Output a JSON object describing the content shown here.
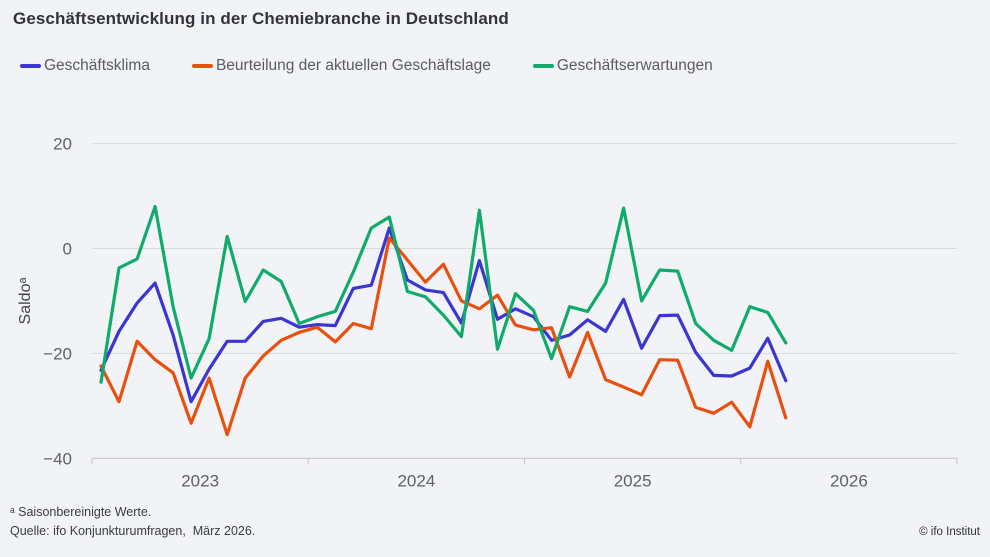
{
  "title": "Geschäftsentwicklung in der Chemiebranche in Deutschland",
  "legend": [
    {
      "label": "Geschäftsklima",
      "color": "#3b35d1"
    },
    {
      "label": "Beurteilung der aktuellen Geschäftslage",
      "color": "#e8500f"
    },
    {
      "label": "Geschäftserwartungen",
      "color": "#10ab6c"
    }
  ],
  "chart_data": {
    "type": "line",
    "title": "Geschäftsentwicklung in der Chemiebranche in Deutschland",
    "ylabel": "Saldoᵃ",
    "xlabel": "",
    "ylim": [
      -40,
      20
    ],
    "grid": true,
    "legend_position": "top",
    "yticks": [
      20,
      0,
      -20,
      -40
    ],
    "y_tick_labels": [
      "20",
      "0",
      "−20",
      "−40"
    ],
    "x_year_labels": [
      "2023",
      "2024",
      "2025",
      "2026"
    ],
    "x_axis_span_months": 48,
    "x": [
      "Jan 2023",
      "Feb 2023",
      "Mär 2023",
      "Apr 2023",
      "Mai 2023",
      "Jun 2023",
      "Jul 2023",
      "Aug 2023",
      "Sep 2023",
      "Okt 2023",
      "Nov 2023",
      "Dez 2023",
      "Jan 2024",
      "Feb 2024",
      "Mär 2024",
      "Apr 2024",
      "Mai 2024",
      "Jun 2024",
      "Jul 2024",
      "Aug 2024",
      "Sep 2024",
      "Okt 2024",
      "Nov 2024",
      "Dez 2024",
      "Jan 2025",
      "Feb 2025",
      "Mär 2025",
      "Apr 2025",
      "Mai 2025",
      "Jun 2025",
      "Jul 2025",
      "Aug 2025",
      "Sep 2025",
      "Okt 2025",
      "Nov 2025",
      "Dez 2025",
      "Jan 2026",
      "Feb 2026",
      "Mär 2026"
    ],
    "series": [
      {
        "name": "Geschäftsklima",
        "color": "#3b35d1",
        "values": [
          -23.2,
          -15.8,
          -10.4,
          -6.6,
          -16.5,
          -29.2,
          -23.0,
          -17.7,
          -17.7,
          -13.9,
          -13.3,
          -15.0,
          -14.5,
          -14.7,
          -7.6,
          -7.0,
          3.9,
          -6.0,
          -7.9,
          -8.4,
          -14.2,
          -2.3,
          -13.5,
          -11.5,
          -13.0,
          -17.5,
          -16.5,
          -13.6,
          -15.8,
          -9.7,
          -19.0,
          -12.8,
          -12.7,
          -19.8,
          -24.2,
          -24.3,
          -22.8,
          -17.1,
          -25.2
        ]
      },
      {
        "name": "Beurteilung der aktuellen Geschäftslage",
        "color": "#e8500f",
        "values": [
          -22.4,
          -29.2,
          -17.7,
          -21.2,
          -23.7,
          -33.3,
          -24.7,
          -35.5,
          -24.7,
          -20.5,
          -17.5,
          -16.0,
          -15.0,
          -17.8,
          -14.3,
          -15.3,
          2.0,
          -2.2,
          -6.4,
          -3.0,
          -10.0,
          -11.5,
          -8.9,
          -14.6,
          -15.5,
          -15.1,
          -24.5,
          -16.0,
          -25.0,
          -26.4,
          -27.9,
          -21.2,
          -21.3,
          -30.3,
          -31.4,
          -29.3,
          -34.0,
          -21.5,
          -32.3
        ]
      },
      {
        "name": "Geschäftserwartungen",
        "color": "#10ab6c",
        "values": [
          -25.5,
          -3.7,
          -2.0,
          8.0,
          -11.1,
          -24.7,
          -17.2,
          2.3,
          -10.1,
          -4.1,
          -6.3,
          -14.3,
          -13.0,
          -12.0,
          -4.5,
          3.9,
          6.0,
          -8.2,
          -9.2,
          -12.7,
          -16.8,
          7.3,
          -19.2,
          -8.6,
          -11.8,
          -21.0,
          -11.1,
          -12.0,
          -6.6,
          7.7,
          -10.0,
          -4.1,
          -4.3,
          -14.3,
          -17.5,
          -19.4,
          -11.1,
          -12.2,
          -18.0
        ]
      }
    ]
  },
  "footnotes": {
    "note": "ᵃ Saisonbereinigte Werte.",
    "source": "Quelle: ifo Konjunkturumfragen,  März 2026."
  },
  "copyright": "© ifo Institut",
  "colors": {
    "background": "#f2f3f6",
    "gridline": "#d9dadd",
    "axis_line": "#c8c9cd",
    "axis_text": "#5f6069",
    "title_text": "#32333c",
    "legend_text": "#5a5b64"
  }
}
